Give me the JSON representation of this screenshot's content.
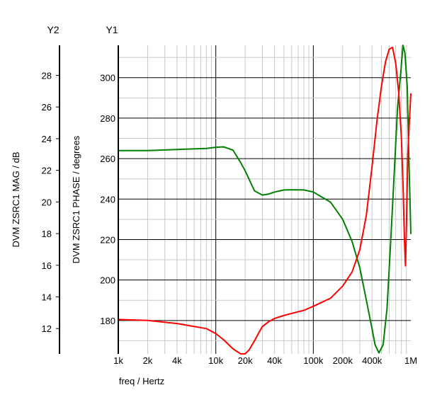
{
  "chart_data": {
    "type": "line",
    "y2_header": "Y2",
    "y1_header": "Y1",
    "xlabel": "freq / Hertz",
    "x_scale": "log",
    "xlim": [
      1000,
      1000000
    ],
    "x_ticks": [
      {
        "value": 1000,
        "label": "1k"
      },
      {
        "value": 2000,
        "label": "2k"
      },
      {
        "value": 4000,
        "label": "4k"
      },
      {
        "value": 10000,
        "label": "10k"
      },
      {
        "value": 20000,
        "label": "20k"
      },
      {
        "value": 40000,
        "label": "40k"
      },
      {
        "value": 100000,
        "label": "100k"
      },
      {
        "value": 200000,
        "label": "200k"
      },
      {
        "value": 400000,
        "label": "400k"
      },
      {
        "value": 1000000,
        "label": "1M"
      }
    ],
    "y1": {
      "label": "DVM ZSRC1 PHASE / degrees",
      "ylim": [
        163.5,
        316
      ],
      "ticks": [
        180,
        200,
        220,
        240,
        260,
        280,
        300
      ]
    },
    "y2": {
      "label": "DVM ZSRC1 MAG / dB",
      "ylim": [
        10.4,
        29.9
      ],
      "ticks": [
        12,
        14,
        16,
        18,
        20,
        22,
        24,
        26,
        28
      ]
    },
    "grid": true,
    "series": [
      {
        "axis": "y1",
        "color": "#008000",
        "x": [
          1000,
          2000,
          4000,
          8000,
          10000,
          12000,
          15000,
          18000,
          20000,
          25000,
          30000,
          35000,
          40000,
          50000,
          60000,
          80000,
          100000,
          150000,
          200000,
          250000,
          300000,
          350000,
          400000,
          430000,
          470000,
          520000,
          570000,
          620000,
          680000,
          730000,
          790000,
          830000,
          870000,
          920000,
          950000,
          1000000
        ],
        "y": [
          264,
          264,
          264.5,
          265,
          265.6,
          265.8,
          264.2,
          258,
          254,
          244,
          242,
          242.5,
          243.5,
          244.5,
          244.6,
          244.5,
          243.5,
          238.5,
          230,
          219,
          206,
          190,
          176,
          168,
          164,
          168,
          186,
          218,
          255,
          285,
          303,
          316,
          312,
          295,
          265,
          223
        ]
      },
      {
        "axis": "y1",
        "color": "#ff0000",
        "x": [
          1000,
          2000,
          4000,
          8000,
          10000,
          12000,
          15000,
          18000,
          20000,
          22000,
          25000,
          28000,
          30000,
          35000,
          40000,
          50000,
          60000,
          80000,
          100000,
          150000,
          200000,
          250000,
          300000,
          350000,
          400000,
          450000,
          500000,
          550000,
          600000,
          650000,
          700000,
          750000,
          800000,
          830000,
          860000,
          880000,
          900000,
          930000,
          960000,
          1000000
        ],
        "y": [
          180.5,
          180,
          178.5,
          176,
          173.5,
          170.5,
          166,
          163.5,
          163.5,
          165.5,
          170,
          174.5,
          177,
          179.5,
          181,
          182.5,
          183.5,
          185,
          187,
          191,
          197,
          204,
          215,
          232,
          256,
          279,
          296,
          308,
          314,
          315,
          307,
          293,
          270,
          248,
          220,
          207,
          225,
          262,
          276,
          292
        ]
      }
    ]
  }
}
